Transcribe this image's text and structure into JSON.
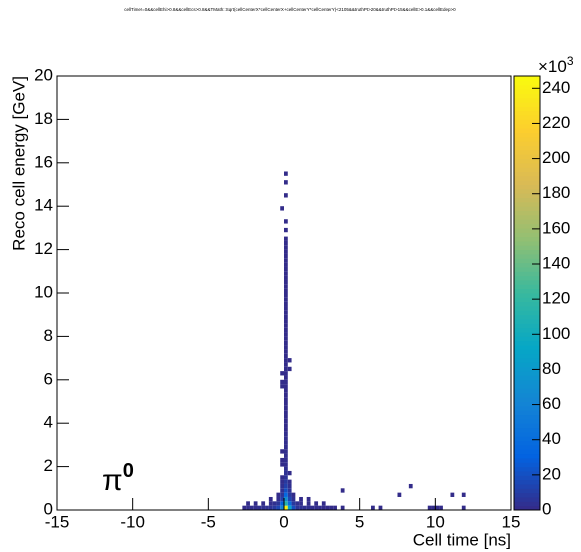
{
  "chart_data": {
    "type": "heatmap",
    "title": "cellTime!=0&&cellEhi>0.8&&cellEcs>0.8&&TMath::Sqrt(cellCenterX*cellCenterX+cellCenterY*cellCenterY)<2105&&truthPt>20&&truthPt>15&&cellE>0.1&&cellEdep>0",
    "x_label": "Cell time [ns]",
    "y_label": "Reco cell energy [GeV]",
    "annotation": {
      "text": "π",
      "superscript": "0"
    },
    "z_multiplier": {
      "text": "×10",
      "superscript": "3"
    },
    "xlim": [
      -15,
      15
    ],
    "ylim": [
      0,
      20
    ],
    "zlim": [
      0,
      247
    ],
    "xticks": [
      -15,
      -10,
      -5,
      0,
      5,
      10,
      15
    ],
    "yticks": [
      0,
      2,
      4,
      6,
      8,
      10,
      12,
      14,
      16,
      18,
      20
    ],
    "zticks": [
      0,
      20,
      40,
      60,
      80,
      100,
      120,
      140,
      160,
      180,
      200,
      220,
      240
    ],
    "bin_width": [
      0.25,
      0.2
    ],
    "colormap": [
      "#352a87",
      "#0363e1",
      "#1485d4",
      "#06a7c6",
      "#38b99e",
      "#92bf73",
      "#d9ba56",
      "#fcce2e",
      "#f9fb0e"
    ],
    "cells": [
      [
        -2.75,
        0,
        1
      ],
      [
        -2.5,
        0,
        2
      ],
      [
        -2.25,
        0,
        2
      ],
      [
        -2,
        0,
        2
      ],
      [
        -1.75,
        0,
        3
      ],
      [
        -1.5,
        0,
        3
      ],
      [
        -1.25,
        0,
        4
      ],
      [
        -1,
        0,
        5
      ],
      [
        -0.75,
        0,
        8
      ],
      [
        -0.5,
        0,
        15
      ],
      [
        -0.25,
        0,
        60
      ],
      [
        0,
        0,
        240
      ],
      [
        0.25,
        0,
        90
      ],
      [
        0.5,
        0,
        20
      ],
      [
        0.75,
        0,
        6
      ],
      [
        1,
        0,
        4
      ],
      [
        1.25,
        0,
        3
      ],
      [
        1.5,
        0,
        3
      ],
      [
        1.75,
        0,
        2
      ],
      [
        2,
        0,
        2
      ],
      [
        2.25,
        0,
        2
      ],
      [
        2.5,
        0,
        1
      ],
      [
        2.75,
        0,
        1
      ],
      [
        3,
        0,
        1
      ],
      [
        3.25,
        0,
        1
      ],
      [
        -2.5,
        0.2,
        1
      ],
      [
        -2,
        0.2,
        1
      ],
      [
        -1.5,
        0.2,
        1
      ],
      [
        -1,
        0.2,
        2
      ],
      [
        -0.75,
        0.2,
        3
      ],
      [
        -0.5,
        0.2,
        6
      ],
      [
        -0.25,
        0.2,
        30
      ],
      [
        0,
        0.2,
        110
      ],
      [
        0.25,
        0.2,
        40
      ],
      [
        0.5,
        0.2,
        8
      ],
      [
        0.75,
        0.2,
        3
      ],
      [
        1,
        0.2,
        2
      ],
      [
        1.5,
        0.2,
        1
      ],
      [
        2,
        0.2,
        1
      ],
      [
        2.5,
        0.2,
        1
      ],
      [
        -1,
        0.4,
        1
      ],
      [
        -0.5,
        0.4,
        2
      ],
      [
        -0.25,
        0.4,
        12
      ],
      [
        0,
        0.4,
        70
      ],
      [
        0.25,
        0.4,
        15
      ],
      [
        0.5,
        0.4,
        3
      ],
      [
        1,
        0.4,
        1
      ],
      [
        1.5,
        0.4,
        1
      ],
      [
        -0.5,
        0.6,
        1
      ],
      [
        -0.25,
        0.6,
        6
      ],
      [
        0,
        0.6,
        35
      ],
      [
        0.25,
        0.6,
        8
      ],
      [
        0.5,
        0.6,
        1
      ],
      [
        -0.25,
        0.8,
        4
      ],
      [
        0,
        0.8,
        20
      ],
      [
        0.25,
        0.8,
        5
      ],
      [
        -0.25,
        1,
        3
      ],
      [
        0,
        1,
        12
      ],
      [
        0.25,
        1,
        3
      ],
      [
        -0.25,
        1.2,
        2
      ],
      [
        0,
        1.2,
        8
      ],
      [
        0.25,
        1.2,
        2
      ],
      [
        -0.25,
        1.4,
        1
      ],
      [
        0,
        1.4,
        5
      ],
      [
        0,
        1.6,
        4
      ],
      [
        0.25,
        1.6,
        1
      ],
      [
        0,
        1.8,
        3
      ],
      [
        -0.25,
        2,
        1
      ],
      [
        0,
        2,
        2
      ],
      [
        -0.25,
        2.2,
        1
      ],
      [
        0,
        2.2,
        2
      ],
      [
        0,
        2.4,
        2
      ],
      [
        -0.25,
        2.6,
        1
      ],
      [
        0,
        2.6,
        2
      ],
      [
        0,
        2.8,
        2
      ],
      [
        0,
        3,
        2
      ],
      [
        0,
        3.2,
        2
      ],
      [
        0,
        3.4,
        2
      ],
      [
        0,
        3.6,
        1
      ],
      [
        0,
        3.8,
        1
      ],
      [
        0,
        4,
        1
      ],
      [
        0,
        4.2,
        1
      ],
      [
        0,
        4.4,
        1
      ],
      [
        0,
        4.6,
        1
      ],
      [
        0,
        4.8,
        1
      ],
      [
        0,
        5,
        1
      ],
      [
        0,
        5.2,
        1
      ],
      [
        0,
        5.4,
        1
      ],
      [
        -0.25,
        5.6,
        1
      ],
      [
        0,
        5.6,
        1
      ],
      [
        -0.25,
        5.8,
        1
      ],
      [
        0,
        5.8,
        1
      ],
      [
        0,
        6,
        1
      ],
      [
        -0.25,
        6.2,
        1
      ],
      [
        0,
        6.2,
        1
      ],
      [
        0.25,
        6.4,
        1
      ],
      [
        0,
        6.4,
        1
      ],
      [
        0,
        6.6,
        1
      ],
      [
        0.25,
        6.8,
        1
      ],
      [
        0,
        6.8,
        1
      ],
      [
        0,
        7,
        1
      ],
      [
        0,
        7.2,
        1
      ],
      [
        0,
        7.4,
        1
      ],
      [
        0,
        7.6,
        1
      ],
      [
        0,
        7.8,
        1
      ],
      [
        0,
        8,
        1
      ],
      [
        0,
        8.2,
        1
      ],
      [
        0,
        8.4,
        1
      ],
      [
        0,
        8.6,
        1
      ],
      [
        0,
        8.8,
        1
      ],
      [
        0,
        9,
        1
      ],
      [
        0,
        9.2,
        1
      ],
      [
        0,
        9.4,
        1
      ],
      [
        0,
        9.6,
        1
      ],
      [
        0,
        9.8,
        1
      ],
      [
        0,
        10,
        1
      ],
      [
        0,
        10.2,
        1
      ],
      [
        0,
        10.4,
        1
      ],
      [
        0,
        10.6,
        1
      ],
      [
        0,
        10.8,
        1
      ],
      [
        0,
        11,
        1
      ],
      [
        0,
        11.2,
        1
      ],
      [
        0,
        11.4,
        1
      ],
      [
        0,
        11.6,
        1
      ],
      [
        0,
        11.8,
        1
      ],
      [
        0,
        12,
        1
      ],
      [
        0,
        12.2,
        1
      ],
      [
        0,
        12.4,
        1
      ],
      [
        0,
        12.8,
        1
      ],
      [
        0,
        13.2,
        1
      ],
      [
        -0.25,
        13.8,
        1
      ],
      [
        0,
        14.4,
        1
      ],
      [
        0,
        15,
        1
      ],
      [
        0,
        15.4,
        1
      ],
      [
        3.75,
        0.8,
        1
      ],
      [
        3.75,
        0,
        1
      ],
      [
        5.75,
        0,
        1
      ],
      [
        6.25,
        0,
        1
      ],
      [
        7.5,
        0.6,
        1
      ],
      [
        8.25,
        1,
        1
      ],
      [
        9.5,
        0,
        1
      ],
      [
        9.75,
        0,
        1
      ],
      [
        10,
        0,
        1
      ],
      [
        10.25,
        0,
        1
      ],
      [
        11,
        0.6,
        1
      ],
      [
        11.75,
        0.6,
        1
      ],
      [
        11.75,
        0,
        1
      ]
    ]
  }
}
